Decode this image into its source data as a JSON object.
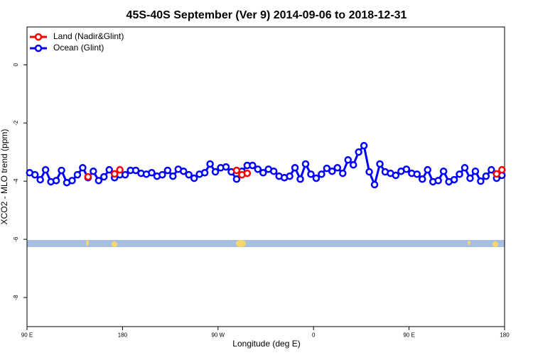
{
  "chart_data": {
    "type": "line",
    "title": "45S-40S September (Ver 9)   2014-09-06 to 2018-12-31",
    "x_label": "Longitude (deg E)",
    "y_label": "XCO2 - MLO trend (ppm)",
    "x": [
      92.5,
      97.5,
      102.5,
      107.5,
      112.5,
      117.5,
      122.5,
      127.5,
      132.5,
      137.5,
      142.5,
      147.5,
      152.5,
      157.5,
      162.5,
      167.5,
      172.5,
      177.5,
      182.5,
      187.5,
      192.5,
      197.5,
      202.5,
      207.5,
      212.5,
      217.5,
      222.5,
      227.5,
      232.5,
      237.5,
      242.5,
      247.5,
      252.5,
      257.5,
      262.5,
      267.5,
      272.5,
      277.5,
      282.5,
      287.5,
      292.5,
      297.5,
      302.5,
      307.5,
      312.5,
      317.5,
      322.5,
      327.5,
      332.5,
      337.5,
      342.5,
      347.5,
      352.5,
      357.5,
      362.5,
      367.5,
      372.5,
      377.5,
      382.5,
      387.5,
      392.5,
      397.5,
      402.5,
      407.5,
      412.5,
      417.5,
      422.5,
      427.5,
      432.5,
      437.5,
      442.5,
      447.5,
      452.5,
      457.5,
      462.5,
      467.5,
      472.5,
      477.5,
      482.5,
      487.5,
      492.5,
      497.5,
      502.5,
      507.5,
      512.5,
      517.5,
      522.5,
      527.5,
      532.5,
      537.5
    ],
    "series": [
      {
        "name": "Land (Nadir&Glint)",
        "color": "#ff0000",
        "values": [
          null,
          null,
          null,
          null,
          null,
          null,
          null,
          null,
          null,
          null,
          null,
          -3.85,
          null,
          null,
          null,
          null,
          -3.75,
          -3.61,
          null,
          null,
          null,
          null,
          null,
          null,
          null,
          null,
          null,
          null,
          null,
          null,
          null,
          null,
          null,
          null,
          null,
          null,
          null,
          null,
          null,
          -3.63,
          -3.78,
          -3.73,
          null,
          null,
          null,
          null,
          null,
          null,
          null,
          null,
          null,
          null,
          null,
          null,
          null,
          null,
          null,
          null,
          null,
          null,
          null,
          null,
          null,
          null,
          null,
          null,
          null,
          null,
          null,
          null,
          null,
          null,
          null,
          null,
          null,
          null,
          null,
          null,
          null,
          null,
          null,
          null,
          null,
          null,
          null,
          null,
          null,
          null,
          -3.75,
          -3.61
        ]
      },
      {
        "name": "Ocean (Glint)",
        "color": "#0000ff",
        "values": [
          -3.71,
          -3.78,
          -3.95,
          -3.61,
          -4.02,
          -3.98,
          -3.63,
          -4.05,
          -3.98,
          -3.78,
          -3.54,
          -3.88,
          -3.66,
          -3.98,
          -3.85,
          -3.61,
          -3.88,
          -3.78,
          -3.78,
          -3.63,
          -3.63,
          -3.73,
          -3.76,
          -3.71,
          -3.83,
          -3.78,
          -3.63,
          -3.83,
          -3.59,
          -3.66,
          -3.78,
          -3.9,
          -3.76,
          -3.71,
          -3.41,
          -3.68,
          -3.54,
          -3.51,
          -3.68,
          -3.93,
          -3.66,
          -3.46,
          -3.46,
          -3.59,
          -3.71,
          -3.59,
          -3.66,
          -3.83,
          -3.88,
          -3.83,
          -3.54,
          -3.93,
          -3.41,
          -3.76,
          -3.9,
          -3.76,
          -3.56,
          -3.66,
          -3.54,
          -3.73,
          -3.27,
          -3.44,
          -3.0,
          -2.78,
          -3.68,
          -4.12,
          -3.41,
          -3.68,
          -3.73,
          -3.8,
          -3.66,
          -3.59,
          -3.73,
          -3.76,
          -3.93,
          -3.61,
          -4.02,
          -3.98,
          -3.66,
          -4.02,
          -3.95,
          -3.76,
          -3.54,
          -3.9,
          -3.66,
          -4.0,
          -3.83,
          -3.61,
          -3.9,
          -3.8
        ]
      }
    ],
    "xlim": [
      90,
      540
    ],
    "xticks": [
      {
        "value": 90,
        "label": "90 E"
      },
      180,
      {
        "value": 270,
        "label": "90 W"
      },
      {
        "value": 360,
        "label": "0"
      },
      {
        "value": 450,
        "label": "90 E"
      },
      {
        "value": 540,
        "label": "180"
      }
    ],
    "ylim": [
      -9,
      1.3
    ],
    "yticks": [
      0,
      -2,
      -4,
      -6,
      -8
    ],
    "grid": false,
    "legend": "top-left"
  }
}
